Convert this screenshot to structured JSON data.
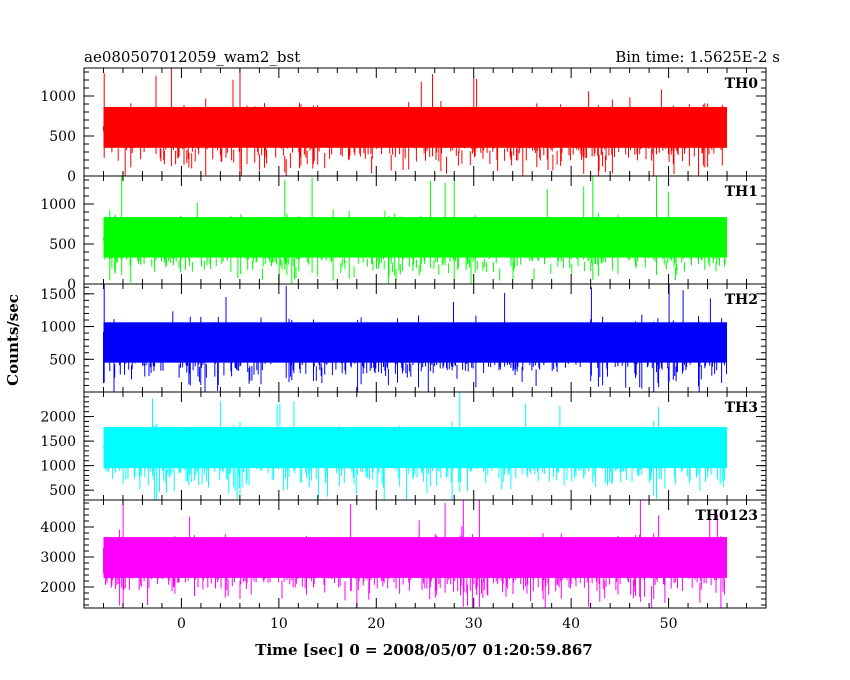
{
  "header": {
    "title": "ae080507012059_wam2_bst",
    "bin_time": "Bin time: 1.5625E-2 s"
  },
  "chart_data": {
    "type": "line",
    "title": "ae080507012059_wam2_bst",
    "subtitle": "Bin time: 1.5625E-2 s",
    "xlabel": "Time [sec] 0 = 2008/05/07 01:20:59.867",
    "ylabel": "Counts/sec",
    "xlim": [
      -10,
      60
    ],
    "x_ticks": [
      0,
      10,
      20,
      30,
      40,
      50
    ],
    "x_range_data": [
      -8,
      56
    ],
    "grid": false,
    "panels": [
      {
        "name": "TH0",
        "color": "#ff0000",
        "ylim": [
          0,
          1350
        ],
        "y_ticks": [
          0,
          500,
          1000
        ],
        "base": 0,
        "range": [
          50,
          1350
        ],
        "mean": 600
      },
      {
        "name": "TH1",
        "color": "#00ff00",
        "ylim": [
          0,
          1350
        ],
        "y_ticks": [
          0,
          500,
          1000
        ],
        "base": 0,
        "range": [
          50,
          1350
        ],
        "mean": 560
      },
      {
        "name": "TH2",
        "color": "#0000ff",
        "ylim": [
          0,
          1650
        ],
        "y_ticks": [
          500,
          1000,
          1500
        ],
        "base": 0,
        "range": [
          80,
          1650
        ],
        "mean": 750
      },
      {
        "name": "TH3",
        "color": "#00ffff",
        "ylim": [
          300,
          2500
        ],
        "y_ticks": [
          500,
          1000,
          1500,
          2000
        ],
        "base": 300,
        "range": [
          400,
          2500
        ],
        "mean": 1400
      },
      {
        "name": "TH0123",
        "color": "#ff00ff",
        "ylim": [
          1300,
          4900
        ],
        "y_ticks": [
          2000,
          3000,
          4000
        ],
        "base": 1300,
        "range": [
          1450,
          4900
        ],
        "mean": 3000
      }
    ]
  }
}
